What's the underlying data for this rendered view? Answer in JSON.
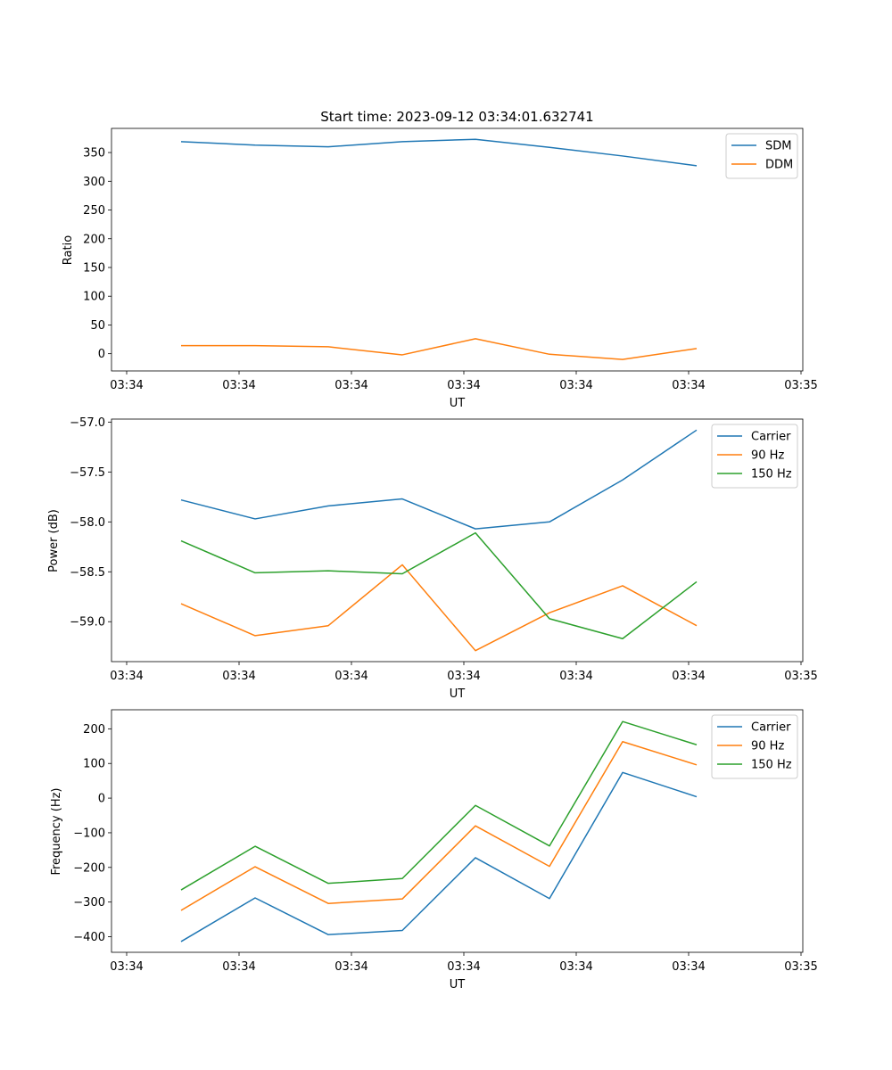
{
  "chart_data": [
    {
      "type": "line",
      "title": "Start time: 2023-09-12 03:34:01.632741",
      "xlabel": "UT",
      "ylabel": "Ratio",
      "ylim": [
        -30,
        392
      ],
      "yticks": [
        0,
        50,
        100,
        150,
        200,
        250,
        300,
        350
      ],
      "xticks": [
        "03:34",
        "03:34",
        "03:34",
        "03:34",
        "03:34",
        "03:34",
        "03:34"
      ],
      "xticks_right": "03:35",
      "legend_position": "upper-right",
      "series": [
        {
          "name": "SDM",
          "color": "#1f77b4",
          "values": [
            369,
            363,
            360,
            369,
            373,
            359,
            344,
            327
          ]
        },
        {
          "name": "DDM",
          "color": "#ff7f0e",
          "values": [
            14,
            14,
            12,
            -2,
            26,
            -1,
            -10,
            9
          ]
        }
      ]
    },
    {
      "type": "line",
      "title": "",
      "xlabel": "UT",
      "ylabel": "Power (dB)",
      "ylim": [
        -59.4,
        -56.97
      ],
      "yticks": [
        -59.0,
        -58.5,
        -58.0,
        -57.5,
        -57.0
      ],
      "ytick_labels": [
        "−59.0",
        "−58.5",
        "−58.0",
        "−57.5",
        "−57.0"
      ],
      "xticks": [
        "03:34",
        "03:34",
        "03:34",
        "03:34",
        "03:34",
        "03:34",
        "03:34"
      ],
      "xticks_right": "03:35",
      "legend_position": "upper-right",
      "series": [
        {
          "name": "Carrier",
          "color": "#1f77b4",
          "values": [
            -57.78,
            -57.97,
            -57.84,
            -57.77,
            -58.07,
            -58.0,
            -57.58,
            -57.08
          ]
        },
        {
          "name": "90 Hz",
          "color": "#ff7f0e",
          "values": [
            -58.82,
            -59.14,
            -59.04,
            -58.43,
            -59.29,
            -58.91,
            -58.64,
            -59.04
          ]
        },
        {
          "name": "150 Hz",
          "color": "#2ca02c",
          "values": [
            -58.19,
            -58.51,
            -58.49,
            -58.52,
            -58.11,
            -58.97,
            -59.17,
            -58.6
          ]
        }
      ]
    },
    {
      "type": "line",
      "title": "",
      "xlabel": "UT",
      "ylabel": "Frequency (Hz)",
      "ylim": [
        -445,
        255
      ],
      "yticks": [
        -400,
        -300,
        -200,
        -100,
        0,
        100,
        200
      ],
      "ytick_labels": [
        "−400",
        "−300",
        "−200",
        "−100",
        "0",
        "100",
        "200"
      ],
      "xticks": [
        "03:34",
        "03:34",
        "03:34",
        "03:34",
        "03:34",
        "03:34",
        "03:34"
      ],
      "xticks_right": "03:35",
      "legend_position": "upper-right",
      "series": [
        {
          "name": "Carrier",
          "color": "#1f77b4",
          "values": [
            -414,
            -288,
            -394,
            -382,
            -172,
            -290,
            74,
            4
          ]
        },
        {
          "name": "90 Hz",
          "color": "#ff7f0e",
          "values": [
            -324,
            -198,
            -304,
            -291,
            -80,
            -197,
            163,
            96
          ]
        },
        {
          "name": "150 Hz",
          "color": "#2ca02c",
          "values": [
            -265,
            -139,
            -246,
            -232,
            -21,
            -138,
            221,
            154
          ]
        }
      ]
    }
  ]
}
